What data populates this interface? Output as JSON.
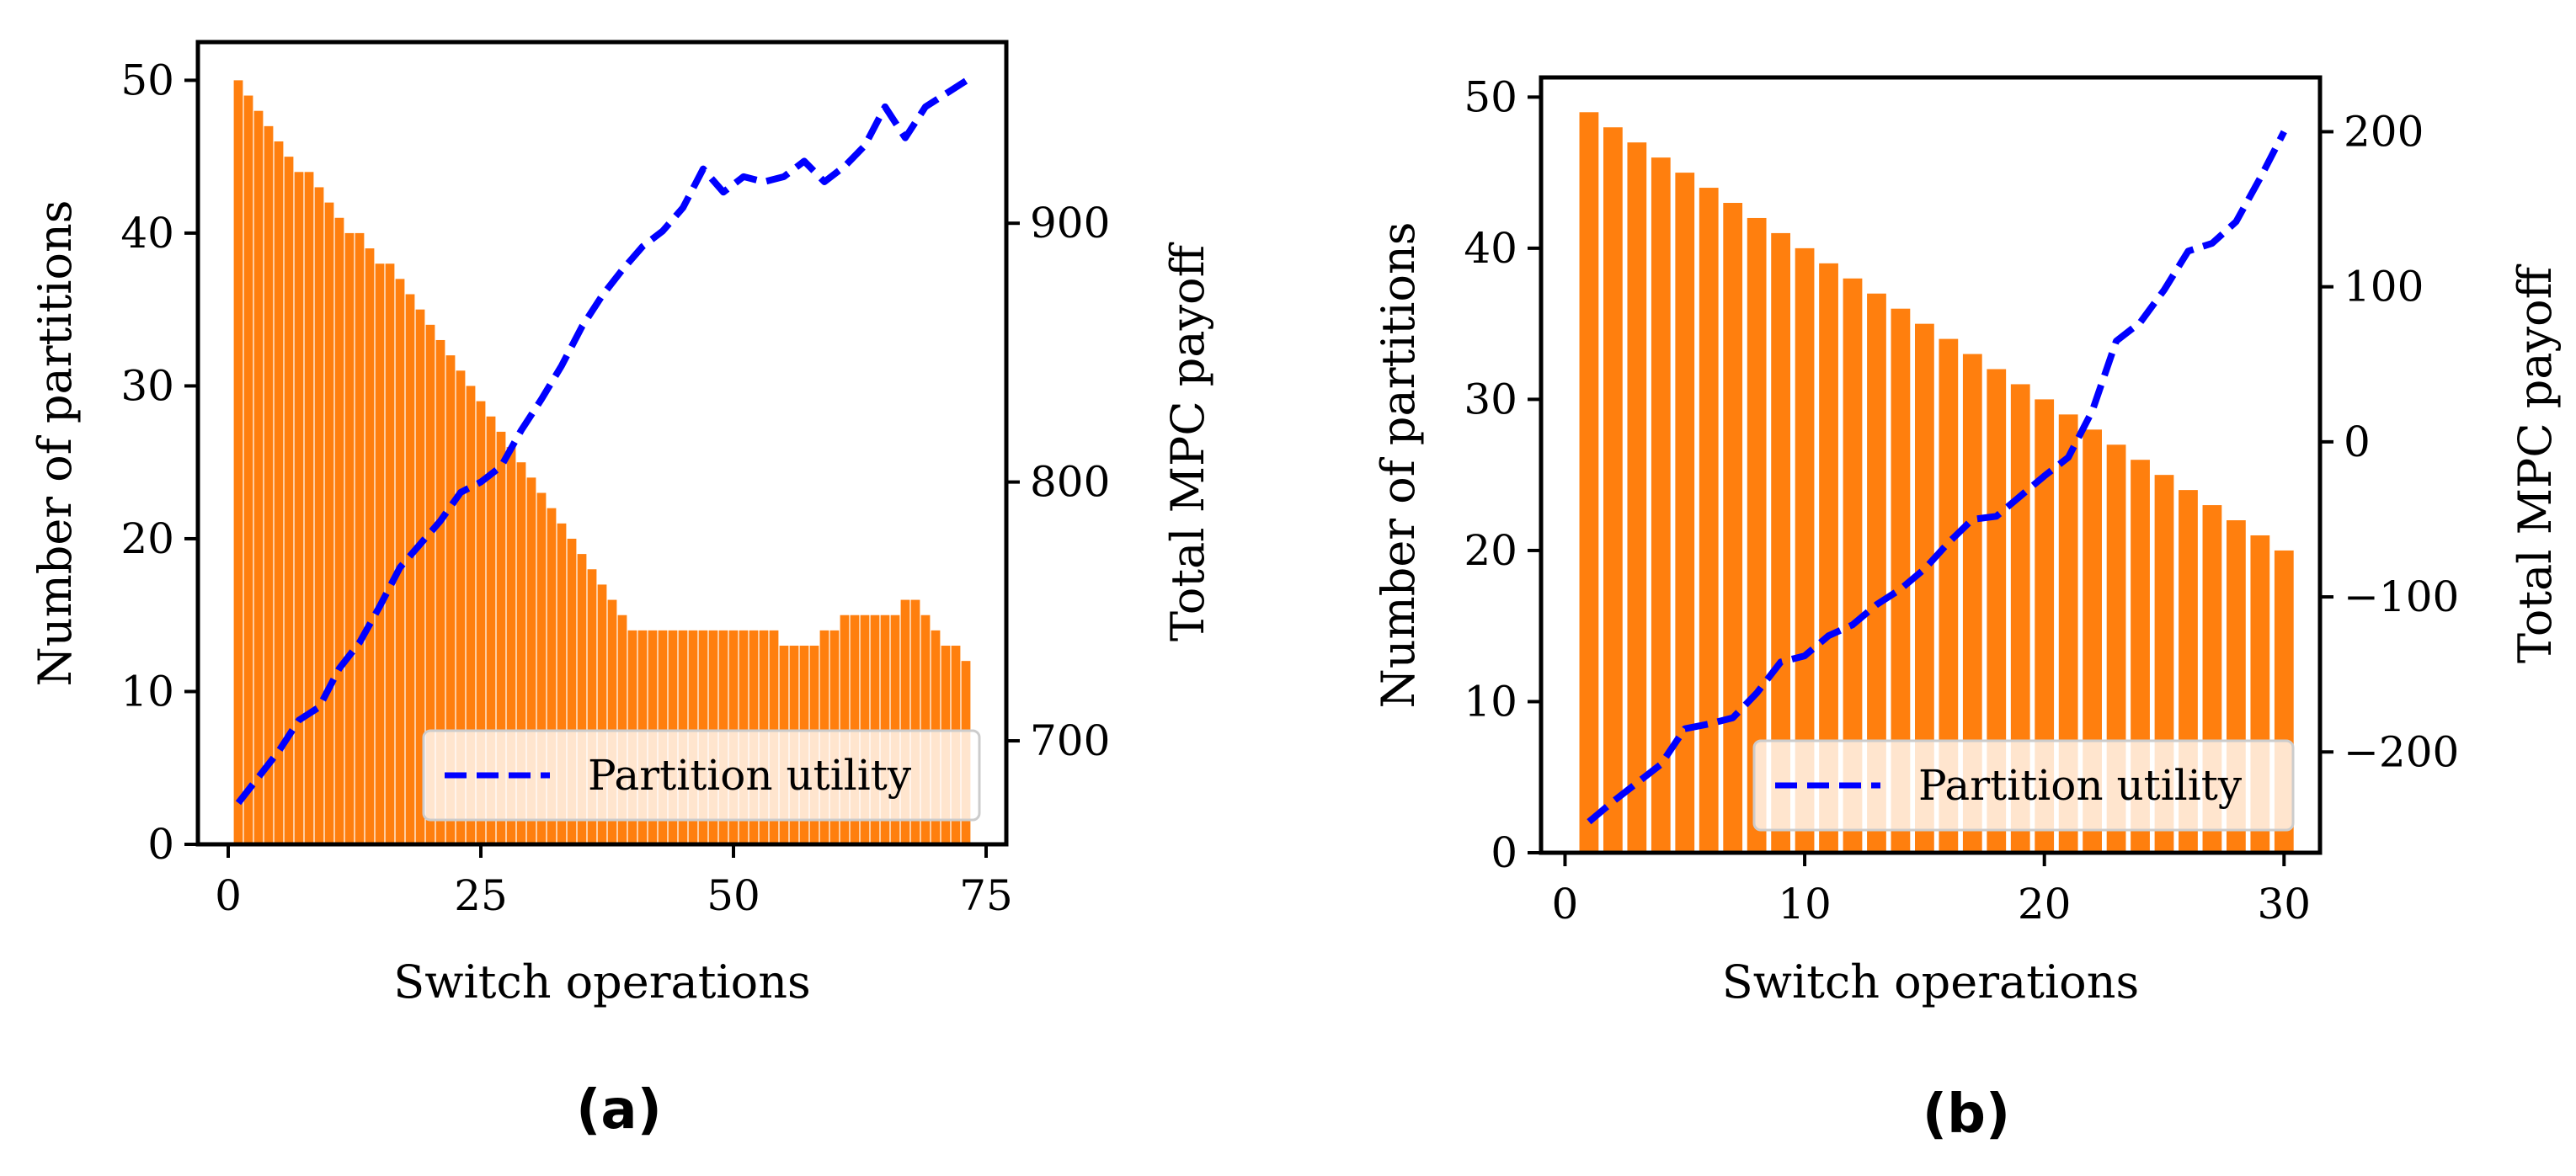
{
  "colors": {
    "bar": "#ff7f0e",
    "line": "#0000ff",
    "axis": "#000000"
  },
  "chart_data": [
    {
      "type": "bar+line",
      "caption": "(a)",
      "xlabel": "Switch operations",
      "ylabel_left": "Number of partitions",
      "ylabel_right": "Total MPC payoff",
      "xlim": [
        -3,
        77
      ],
      "ylim_left": [
        0,
        52.5
      ],
      "ylim_right": [
        660,
        970
      ],
      "xticks": [
        "0",
        "25",
        "50",
        "75"
      ],
      "xtick_values": [
        0,
        25,
        50,
        75
      ],
      "yticks_left": [
        "0",
        "10",
        "20",
        "30",
        "40",
        "50"
      ],
      "ytick_values_left": [
        0,
        10,
        20,
        30,
        40,
        50
      ],
      "yticks_right": [
        "700",
        "800",
        "900"
      ],
      "ytick_values_right": [
        700,
        800,
        900
      ],
      "legend": "Partition utility",
      "legend_loc": "lower-right",
      "bars": {
        "name": "Number of partitions",
        "x": [
          1,
          2,
          3,
          4,
          5,
          6,
          7,
          8,
          9,
          10,
          11,
          12,
          13,
          14,
          15,
          16,
          17,
          18,
          19,
          20,
          21,
          22,
          23,
          24,
          25,
          26,
          27,
          28,
          29,
          30,
          31,
          32,
          33,
          34,
          35,
          36,
          37,
          38,
          39,
          40,
          41,
          42,
          43,
          44,
          45,
          46,
          47,
          48,
          49,
          50,
          51,
          52,
          53,
          54,
          55,
          56,
          57,
          58,
          59,
          60,
          61,
          62,
          63,
          64,
          65,
          66,
          67,
          68,
          69,
          70,
          71,
          72,
          73
        ],
        "values": [
          50,
          49,
          48,
          47,
          46,
          45,
          44,
          44,
          43,
          42,
          41,
          40,
          40,
          39,
          38,
          38,
          37,
          36,
          35,
          34,
          33,
          32,
          31,
          30,
          29,
          28,
          27,
          26,
          25,
          24,
          23,
          22,
          21,
          20,
          19,
          18,
          17,
          16,
          15,
          14,
          14,
          14,
          14,
          14,
          14,
          14,
          14,
          14,
          14,
          14,
          14,
          14,
          14,
          14,
          13,
          13,
          13,
          13,
          14,
          14,
          15,
          15,
          15,
          15,
          15,
          15,
          16,
          16,
          15,
          14,
          13,
          13,
          12
        ]
      },
      "line": {
        "name": "Partition utility",
        "x": [
          1,
          3,
          5,
          7,
          9,
          11,
          13,
          15,
          17,
          19,
          21,
          23,
          25,
          27,
          29,
          31,
          33,
          35,
          37,
          39,
          41,
          43,
          45,
          47,
          49,
          51,
          53,
          55,
          57,
          59,
          61,
          63,
          65,
          67,
          69,
          71,
          73
        ],
        "values": [
          676,
          686,
          696,
          708,
          713,
          728,
          738,
          752,
          767,
          776,
          785,
          796,
          800,
          806,
          820,
          832,
          845,
          860,
          872,
          882,
          891,
          897,
          906,
          921,
          912,
          918,
          916,
          918,
          924,
          916,
          922,
          930,
          945,
          933,
          945,
          950,
          955
        ]
      }
    },
    {
      "type": "bar+line",
      "caption": "(b)",
      "xlabel": "Switch operations",
      "ylabel_left": "Number of partitions",
      "ylabel_right": "Total MPC payoff",
      "xlim": [
        -1,
        31.5
      ],
      "ylim_left": [
        0,
        51.3
      ],
      "ylim_right": [
        -265,
        235
      ],
      "xticks": [
        "0",
        "10",
        "20",
        "30"
      ],
      "xtick_values": [
        0,
        10,
        20,
        30
      ],
      "yticks_left": [
        "0",
        "10",
        "20",
        "30",
        "40",
        "50"
      ],
      "ytick_values_left": [
        0,
        10,
        20,
        30,
        40,
        50
      ],
      "yticks_right": [
        "−200",
        "−100",
        "0",
        "100",
        "200"
      ],
      "ytick_values_right": [
        -200,
        -100,
        0,
        100,
        200
      ],
      "legend": "Partition utility",
      "legend_loc": "lower-right",
      "bars": {
        "name": "Number of partitions",
        "x": [
          1,
          2,
          3,
          4,
          5,
          6,
          7,
          8,
          9,
          10,
          11,
          12,
          13,
          14,
          15,
          16,
          17,
          18,
          19,
          20,
          21,
          22,
          23,
          24,
          25,
          26,
          27,
          28,
          29,
          30
        ],
        "values": [
          49,
          48,
          47,
          46,
          45,
          44,
          43,
          42,
          41,
          40,
          39,
          38,
          37,
          36,
          35,
          34,
          33,
          32,
          31,
          30,
          29,
          28,
          27,
          26,
          25,
          24,
          23,
          22,
          21,
          20
        ]
      },
      "line": {
        "name": "Partition utility",
        "x": [
          1,
          2,
          3,
          4,
          5,
          6,
          7,
          8,
          9,
          10,
          11,
          12,
          13,
          14,
          15,
          16,
          17,
          18,
          19,
          20,
          21,
          22,
          23,
          24,
          25,
          26,
          27,
          28,
          29,
          30
        ],
        "values": [
          -245,
          -232,
          -220,
          -208,
          -185,
          -182,
          -178,
          -162,
          -142,
          -138,
          -125,
          -118,
          -105,
          -95,
          -82,
          -65,
          -50,
          -48,
          -35,
          -22,
          -10,
          20,
          65,
          77,
          98,
          123,
          128,
          142,
          170,
          200
        ]
      }
    }
  ]
}
